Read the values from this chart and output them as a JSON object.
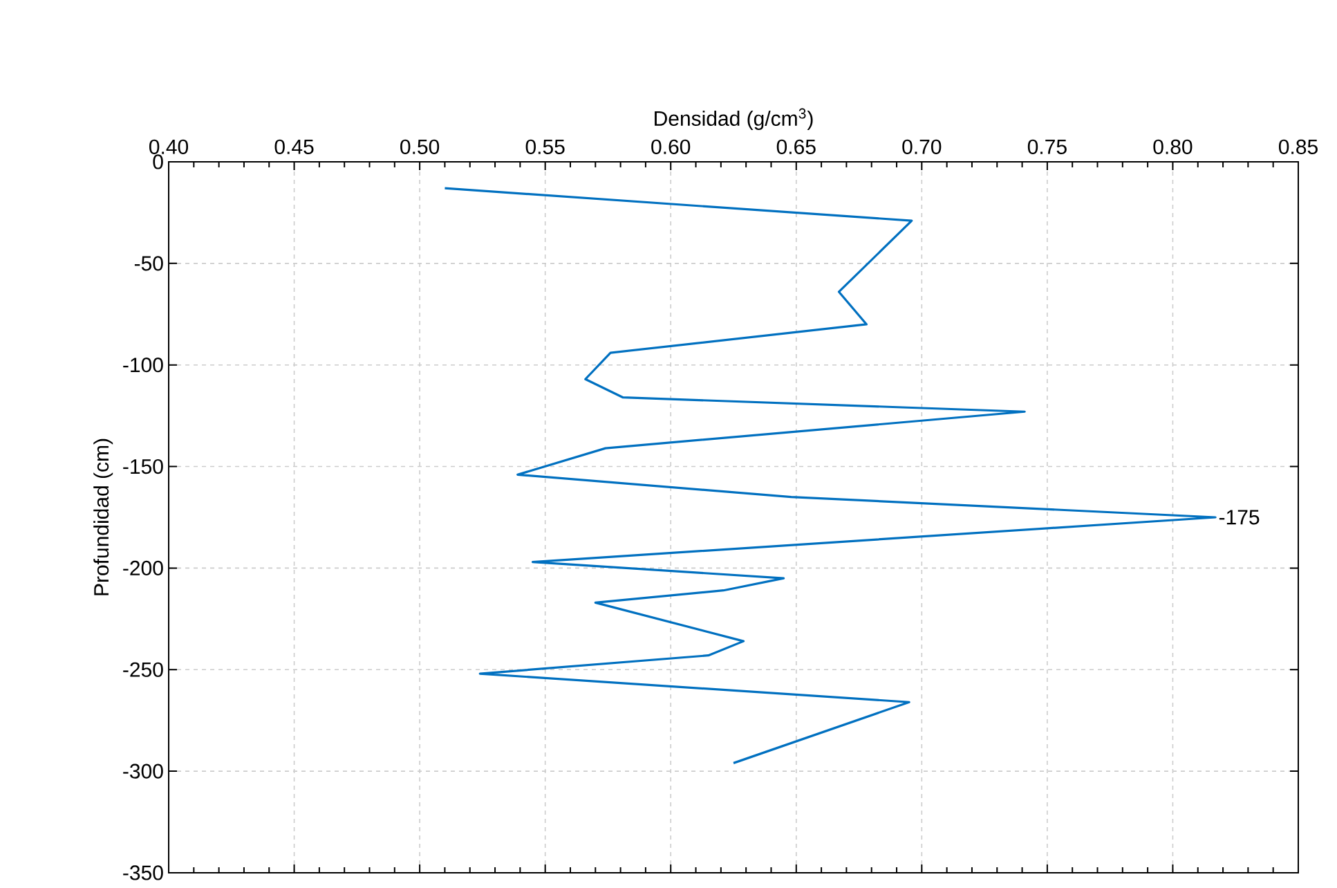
{
  "chart_data": {
    "type": "line",
    "xlabel": "Densidad (g/cm$^{3}$)",
    "ylabel": "Profundidad (cm)",
    "xlim": [
      0.4,
      0.85
    ],
    "xticks": [
      {
        "value": 0.4,
        "label": "0.40"
      },
      {
        "value": 0.45,
        "label": "0.45"
      },
      {
        "value": 0.5,
        "label": "0.50"
      },
      {
        "value": 0.55,
        "label": "0.55"
      },
      {
        "value": 0.6,
        "label": "0.60"
      },
      {
        "value": 0.65,
        "label": "0.65"
      },
      {
        "value": 0.7,
        "label": "0.70"
      },
      {
        "value": 0.75,
        "label": "0.75"
      },
      {
        "value": 0.8,
        "label": "0.80"
      },
      {
        "value": 0.85,
        "label": "0.85"
      }
    ],
    "ylim": [
      -350,
      0
    ],
    "yticks": [
      0,
      -50,
      -100,
      -150,
      -200,
      -250,
      -300,
      -350
    ],
    "grid": true,
    "marker": "none",
    "line_style": "solid",
    "series": [
      {
        "color": "#0070c0",
        "x": [
          0.51,
          0.696,
          0.667,
          0.678,
          0.576,
          0.566,
          0.581,
          0.741,
          0.574,
          0.539,
          0.648,
          0.817,
          0.545,
          0.645,
          0.621,
          0.57,
          0.629,
          0.615,
          0.524,
          0.695,
          0.625
        ],
        "values": [
          -13,
          -29,
          -64,
          -80,
          -94,
          -107,
          -116,
          -123,
          -141,
          -154,
          -165,
          -175,
          -197,
          -205,
          -211,
          -217,
          -236,
          -243,
          -252,
          -266,
          -296
        ],
        "value_labels": [
          null,
          null,
          null,
          null,
          null,
          null,
          null,
          null,
          null,
          null,
          null,
          "-175",
          null,
          null,
          null,
          null,
          null,
          null,
          null,
          null,
          null
        ]
      }
    ]
  }
}
